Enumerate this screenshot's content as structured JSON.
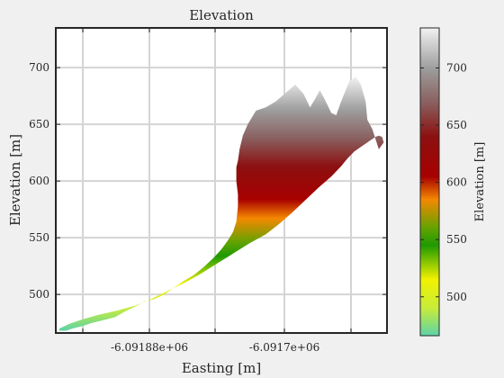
{
  "chart_data": {
    "type": "area",
    "title": "Elevation",
    "xlabel": "Easting [m]",
    "ylabel": "Elevation [m]",
    "xticks": [
      "-6.09188e+06",
      "-6.0917e+06"
    ],
    "yticks": [
      500,
      550,
      600,
      650,
      700
    ],
    "ylim": [
      466,
      735
    ],
    "grid": true,
    "colorbar": {
      "label": "Elevation [m]",
      "ticks": [
        500,
        550,
        600,
        650,
        700
      ],
      "range": [
        466,
        735
      ],
      "colors": [
        {
          "value": 466,
          "color": "#5dd3a8"
        },
        {
          "value": 490,
          "color": "#c7ec3a"
        },
        {
          "value": 515,
          "color": "#f2f200"
        },
        {
          "value": 545,
          "color": "#1f9a00"
        },
        {
          "value": 560,
          "color": "#63a300"
        },
        {
          "value": 585,
          "color": "#f58800"
        },
        {
          "value": 605,
          "color": "#a80000"
        },
        {
          "value": 640,
          "color": "#8c1010"
        },
        {
          "value": 670,
          "color": "#8a6060"
        },
        {
          "value": 700,
          "color": "#9e9e9e"
        },
        {
          "value": 735,
          "color": "#f2f2f2"
        }
      ]
    },
    "surface_outline": [
      [
        0.0,
        470
      ],
      [
        0.03,
        474
      ],
      [
        0.07,
        478
      ],
      [
        0.12,
        482
      ],
      [
        0.18,
        486
      ],
      [
        0.23,
        490
      ],
      [
        0.28,
        496
      ],
      [
        0.33,
        503
      ],
      [
        0.38,
        510
      ],
      [
        0.43,
        518
      ],
      [
        0.48,
        527
      ],
      [
        0.53,
        536
      ],
      [
        0.58,
        545
      ],
      [
        0.63,
        553
      ],
      [
        0.67,
        562
      ],
      [
        0.71,
        572
      ],
      [
        0.75,
        583
      ],
      [
        0.79,
        594
      ],
      [
        0.83,
        604
      ],
      [
        0.86,
        613
      ],
      [
        0.88,
        620
      ],
      [
        0.9,
        626
      ],
      [
        0.92,
        630
      ],
      [
        0.94,
        634
      ],
      [
        0.955,
        637
      ],
      [
        0.965,
        639
      ],
      [
        0.975,
        640
      ],
      [
        0.985,
        639
      ],
      [
        0.99,
        634
      ],
      [
        0.975,
        628
      ],
      [
        0.955,
        646
      ],
      [
        0.94,
        654
      ],
      [
        0.935,
        670
      ],
      [
        0.92,
        685
      ],
      [
        0.905,
        692
      ],
      [
        0.885,
        688
      ],
      [
        0.86,
        670
      ],
      [
        0.845,
        658
      ],
      [
        0.83,
        660
      ],
      [
        0.81,
        672
      ],
      [
        0.795,
        680
      ],
      [
        0.78,
        672
      ],
      [
        0.765,
        665
      ],
      [
        0.745,
        677
      ],
      [
        0.72,
        685
      ],
      [
        0.7,
        680
      ],
      [
        0.68,
        675
      ],
      [
        0.66,
        670
      ],
      [
        0.63,
        665
      ],
      [
        0.6,
        662
      ],
      [
        0.575,
        650
      ],
      [
        0.56,
        640
      ],
      [
        0.55,
        628
      ],
      [
        0.545,
        618
      ],
      [
        0.54,
        612
      ],
      [
        0.54,
        600
      ],
      [
        0.545,
        588
      ],
      [
        0.545,
        578
      ],
      [
        0.54,
        564
      ],
      [
        0.53,
        555
      ],
      [
        0.515,
        548
      ],
      [
        0.495,
        540
      ],
      [
        0.47,
        532
      ],
      [
        0.44,
        524
      ],
      [
        0.41,
        517
      ],
      [
        0.38,
        512
      ],
      [
        0.35,
        506
      ],
      [
        0.32,
        500
      ],
      [
        0.29,
        496
      ],
      [
        0.26,
        494
      ],
      [
        0.23,
        489
      ],
      [
        0.2,
        485
      ],
      [
        0.17,
        480
      ],
      [
        0.13,
        477
      ],
      [
        0.1,
        475
      ],
      [
        0.07,
        472
      ],
      [
        0.04,
        470
      ],
      [
        0.02,
        468
      ],
      [
        0.0,
        468
      ]
    ]
  }
}
